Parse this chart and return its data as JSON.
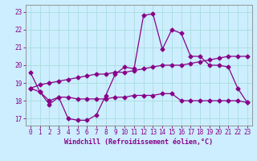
{
  "title": "",
  "xlabel": "Windchill (Refroidissement éolien,°C)",
  "bg_color": "#cceeff",
  "grid_color": "#aadddd",
  "line_color": "#880088",
  "x_ticks": [
    0,
    1,
    2,
    3,
    4,
    5,
    6,
    7,
    8,
    9,
    10,
    11,
    12,
    13,
    14,
    15,
    16,
    17,
    18,
    19,
    20,
    21,
    22,
    23
  ],
  "y_ticks": [
    17,
    18,
    19,
    20,
    21,
    22,
    23
  ],
  "xlim": [
    -0.5,
    23.5
  ],
  "ylim": [
    16.6,
    23.4
  ],
  "line1_x": [
    0,
    1,
    2,
    3,
    4,
    5,
    6,
    7,
    8,
    9,
    10,
    11,
    12,
    13,
    14,
    15,
    16,
    17,
    18,
    19,
    20,
    21,
    22,
    23
  ],
  "line1_y": [
    19.6,
    18.5,
    17.8,
    18.2,
    17.0,
    16.9,
    16.9,
    17.2,
    18.3,
    19.5,
    19.9,
    19.8,
    22.8,
    22.9,
    20.9,
    22.0,
    21.8,
    20.5,
    20.5,
    20.0,
    20.0,
    19.9,
    18.7,
    17.9
  ],
  "line2_x": [
    0,
    1,
    2,
    3,
    4,
    5,
    6,
    7,
    8,
    9,
    10,
    11,
    12,
    13,
    14,
    15,
    16,
    17,
    18,
    19,
    20,
    21,
    22,
    23
  ],
  "line2_y": [
    18.7,
    18.5,
    18.0,
    18.2,
    18.2,
    18.1,
    18.1,
    18.1,
    18.1,
    18.2,
    18.2,
    18.3,
    18.3,
    18.3,
    18.4,
    18.4,
    18.0,
    18.0,
    18.0,
    18.0,
    18.0,
    18.0,
    18.0,
    17.9
  ],
  "line3_x": [
    0,
    1,
    2,
    3,
    4,
    5,
    6,
    7,
    8,
    9,
    10,
    11,
    12,
    13,
    14,
    15,
    16,
    17,
    18,
    19,
    20,
    21,
    22,
    23
  ],
  "line3_y": [
    18.7,
    18.9,
    19.0,
    19.1,
    19.2,
    19.3,
    19.4,
    19.5,
    19.5,
    19.6,
    19.6,
    19.7,
    19.8,
    19.9,
    20.0,
    20.0,
    20.0,
    20.1,
    20.2,
    20.3,
    20.4,
    20.5,
    20.5,
    20.5
  ],
  "marker": "D",
  "markersize": 2.5,
  "linewidth": 0.9,
  "tick_fontsize": 5.5,
  "xlabel_fontsize": 6.0
}
